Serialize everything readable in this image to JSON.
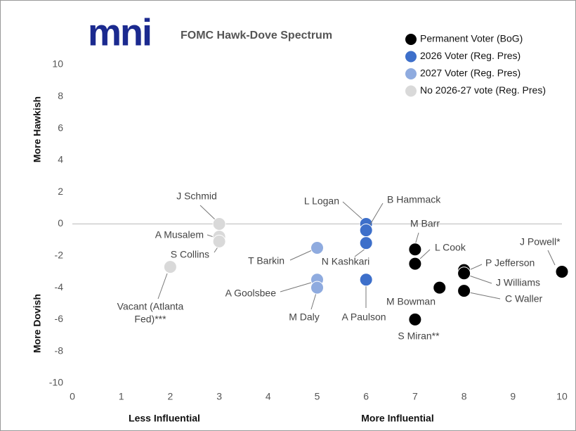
{
  "chart_data": {
    "type": "scatter",
    "logo": "mni",
    "title": "FOMC Hawk-Dove Spectrum",
    "x_axis_labels": [
      "Less Influential",
      "More Influential"
    ],
    "y_axis_labels": [
      "More Hawkish",
      "More Dovish"
    ],
    "xlim": [
      0,
      10
    ],
    "xticks": [
      0,
      1,
      2,
      3,
      4,
      5,
      6,
      7,
      8,
      9,
      10
    ],
    "ylim": [
      -10,
      10
    ],
    "yticks": [
      -10,
      -8,
      -6,
      -4,
      -2,
      0,
      2,
      4,
      6,
      8,
      10
    ],
    "zero_line": true,
    "legend": "top-right",
    "series": [
      {
        "name": "Permanent Voter (BoG)",
        "color": "#000000",
        "x": [
          10,
          7,
          7,
          8,
          8,
          7.5,
          8,
          7
        ],
        "y": [
          -3,
          -1.6,
          -2.5,
          -2.9,
          -3.1,
          -4,
          -4.2,
          -6
        ],
        "labels": [
          "J Powell*",
          "M Barr",
          "L Cook",
          "P Jefferson",
          "J Williams",
          "M Bowman",
          "C Waller",
          "S Miran**"
        ]
      },
      {
        "name": "2026 Voter (Reg. Pres)",
        "color": "#3d6fca",
        "x": [
          6,
          6,
          6,
          6
        ],
        "y": [
          0,
          -0.4,
          -1.2,
          -3.5
        ],
        "labels": [
          "L Logan",
          "B Hammack",
          "N Kashkari",
          "A Paulson"
        ]
      },
      {
        "name": "2027 Voter (Reg. Pres)",
        "color": "#8fabdf",
        "x": [
          5,
          5,
          5
        ],
        "y": [
          -1.5,
          -3.5,
          -4
        ],
        "labels": [
          "T Barkin",
          "A Goolsbee",
          "M Daly"
        ]
      },
      {
        "name": "No 2026-27 vote (Reg. Pres)",
        "color": "#d9d9d9",
        "x": [
          3,
          3,
          3,
          2
        ],
        "y": [
          0,
          -0.8,
          -1.1,
          -2.7
        ],
        "labels": [
          "J Schmid",
          "A Musalem",
          "S Collins",
          [
            "Vacant (Atlanta",
            "Fed)***"
          ]
        ]
      }
    ]
  }
}
